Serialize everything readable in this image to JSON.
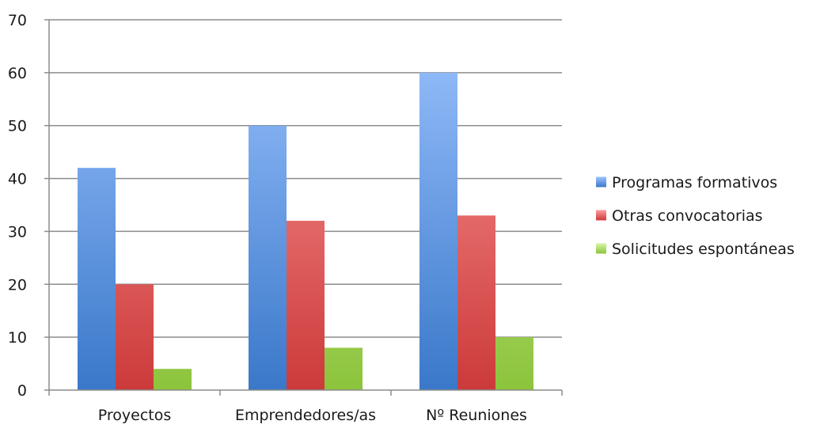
{
  "chart_data": {
    "type": "bar",
    "title": "",
    "xlabel": "",
    "ylabel": "",
    "categories": [
      "Proyectos",
      "Emprendedores/as",
      "Nº Reuniones"
    ],
    "ylim": [
      0,
      70
    ],
    "yticks": [
      0,
      10,
      20,
      30,
      40,
      50,
      60,
      70
    ],
    "grid": true,
    "legend_position": "right",
    "series": [
      {
        "name": "Programas formativos",
        "values": [
          42,
          50,
          60
        ],
        "color_top": "#9cc3ff",
        "color_bottom": "#3a78c9"
      },
      {
        "name": "Otras convocatorias",
        "values": [
          20,
          32,
          33
        ],
        "color_top": "#ff9c9c",
        "color_bottom": "#cc3a3a"
      },
      {
        "name": "Solicitudes espontáneas",
        "values": [
          4,
          8,
          10
        ],
        "color_top": "#d8f5a6",
        "color_bottom": "#8cc43c"
      }
    ]
  }
}
